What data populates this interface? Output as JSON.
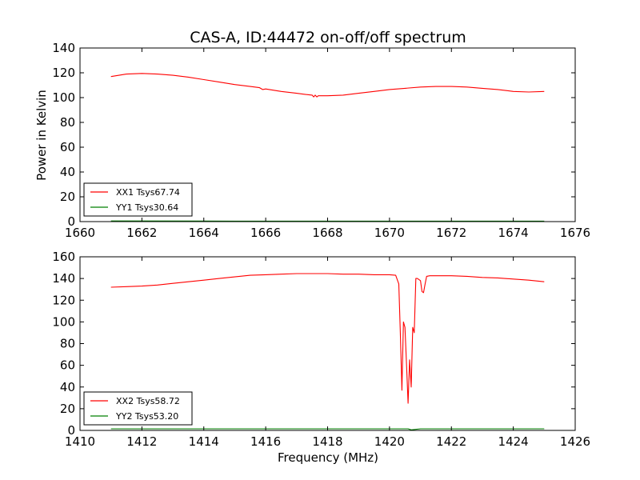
{
  "chart_data": [
    {
      "type": "line",
      "title": "CAS-A, ID:44472 on-off/off spectrum",
      "xlabel": "",
      "ylabel": "Power in Kelvin",
      "xlim": [
        1660,
        1676
      ],
      "ylim": [
        0,
        140
      ],
      "xticks": [
        1660,
        1662,
        1664,
        1666,
        1668,
        1670,
        1672,
        1674,
        1676
      ],
      "yticks": [
        0,
        20,
        40,
        60,
        80,
        100,
        120,
        140
      ],
      "legend_position": "lower-left",
      "grid": false,
      "series": [
        {
          "name": "XX1 Tsys67.74",
          "color": "#ff0000",
          "x": [
            1661.0,
            1661.5,
            1662.0,
            1662.5,
            1663.0,
            1663.5,
            1664.0,
            1664.5,
            1665.0,
            1665.5,
            1665.8,
            1665.9,
            1666.0,
            1666.5,
            1667.0,
            1667.3,
            1667.5,
            1667.55,
            1667.6,
            1667.65,
            1667.7,
            1668.0,
            1668.5,
            1669.0,
            1669.5,
            1670.0,
            1670.5,
            1671.0,
            1671.5,
            1672.0,
            1672.5,
            1673.0,
            1673.5,
            1674.0,
            1674.5,
            1675.0
          ],
          "y": [
            117,
            119,
            119.5,
            119,
            118,
            116.5,
            114.5,
            112.5,
            110.5,
            109,
            108,
            106.5,
            107,
            105,
            103.5,
            102.5,
            102,
            100.5,
            102,
            100.5,
            101.5,
            101.5,
            102,
            103.5,
            105,
            106.5,
            107.5,
            108.5,
            109,
            109,
            108.5,
            107.5,
            106.5,
            105,
            104.5,
            105
          ]
        },
        {
          "name": "YY1 Tsys30.64",
          "color": "#008000",
          "x": [
            1661.0,
            1665.0,
            1670.0,
            1675.0
          ],
          "y": [
            0.5,
            0.4,
            0.4,
            0.4
          ]
        }
      ]
    },
    {
      "type": "line",
      "title": "",
      "xlabel": "Frequency (MHz)",
      "ylabel": "",
      "xlim": [
        1410,
        1426
      ],
      "ylim": [
        0,
        160
      ],
      "xticks": [
        1410,
        1412,
        1414,
        1416,
        1418,
        1420,
        1422,
        1424,
        1426
      ],
      "yticks": [
        0,
        20,
        40,
        60,
        80,
        100,
        120,
        140,
        160
      ],
      "legend_position": "lower-left",
      "grid": false,
      "series": [
        {
          "name": "XX2 Tsys58.72",
          "color": "#ff0000",
          "x": [
            1411.0,
            1411.5,
            1412.0,
            1412.5,
            1413.0,
            1413.5,
            1414.0,
            1414.5,
            1415.0,
            1415.5,
            1416.0,
            1416.5,
            1417.0,
            1417.5,
            1418.0,
            1418.5,
            1419.0,
            1419.5,
            1420.0,
            1420.2,
            1420.3,
            1420.35,
            1420.4,
            1420.45,
            1420.5,
            1420.55,
            1420.6,
            1420.65,
            1420.7,
            1420.75,
            1420.8,
            1420.85,
            1420.9,
            1421.0,
            1421.05,
            1421.1,
            1421.15,
            1421.2,
            1421.3,
            1421.5,
            1422.0,
            1422.5,
            1423.0,
            1423.5,
            1424.0,
            1424.5,
            1425.0
          ],
          "y": [
            132,
            132.5,
            133,
            134,
            135.5,
            137,
            138.5,
            140,
            141.5,
            143,
            143.5,
            144,
            144.5,
            144.5,
            144.5,
            144,
            144,
            143.5,
            143.5,
            143,
            135,
            90,
            37,
            100,
            95,
            60,
            25,
            65,
            40,
            95,
            90,
            140,
            140,
            138,
            128,
            127,
            135,
            142,
            142.5,
            142.5,
            142.5,
            142,
            141,
            140.5,
            139.5,
            138.5,
            137
          ]
        },
        {
          "name": "YY2 Tsys53.20",
          "color": "#008000",
          "x": [
            1411.0,
            1414.0,
            1418.0,
            1420.0,
            1420.6,
            1420.7,
            1421.0,
            1425.0
          ],
          "y": [
            1.5,
            1.5,
            1.5,
            1.5,
            1.5,
            0.5,
            1.5,
            1.5
          ]
        }
      ]
    }
  ]
}
